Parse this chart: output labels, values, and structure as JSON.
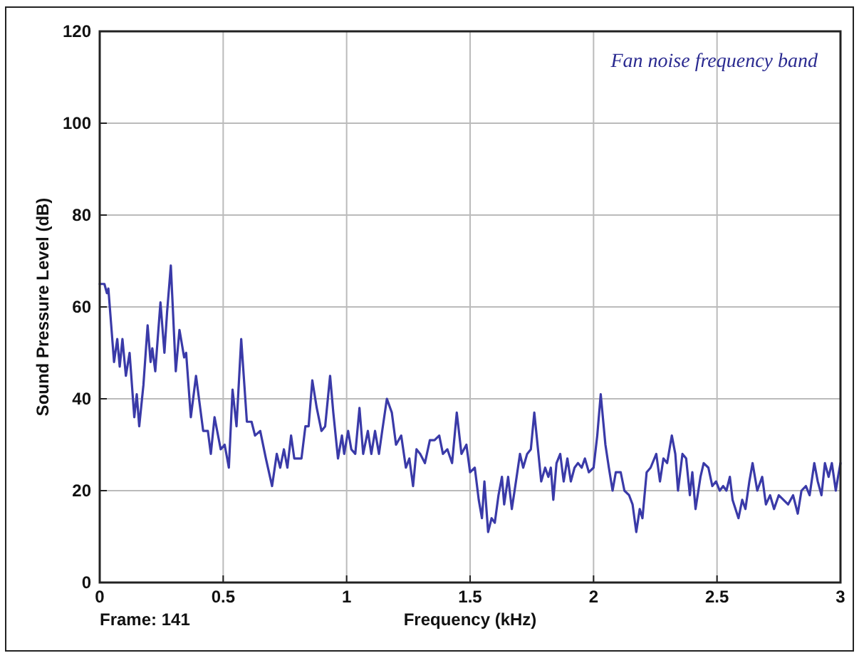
{
  "chart_data": {
    "type": "line",
    "xlabel": "Frequency (kHz)",
    "ylabel": "Sound Pressure Level (dB)",
    "annotations": [
      "Fan noise frequency band",
      "Frame: 141"
    ],
    "xlim": [
      0,
      3
    ],
    "ylim": [
      0,
      120
    ],
    "xticks": [
      0,
      0.5,
      1,
      1.5,
      2,
      2.5,
      3
    ],
    "yticks": [
      0,
      20,
      40,
      60,
      80,
      100,
      120
    ],
    "grid": true,
    "line_style": "solid",
    "marker": "none",
    "series": [
      {
        "color": "#3a3aa8",
        "x": [
          0,
          0.019,
          0.029,
          0.035,
          0.048,
          0.058,
          0.071,
          0.081,
          0.092,
          0.106,
          0.121,
          0.14,
          0.15,
          0.16,
          0.177,
          0.194,
          0.206,
          0.213,
          0.225,
          0.246,
          0.262,
          0.273,
          0.288,
          0.308,
          0.323,
          0.342,
          0.35,
          0.369,
          0.39,
          0.419,
          0.438,
          0.45,
          0.465,
          0.49,
          0.506,
          0.523,
          0.538,
          0.554,
          0.573,
          0.596,
          0.615,
          0.629,
          0.65,
          0.673,
          0.698,
          0.717,
          0.731,
          0.746,
          0.76,
          0.775,
          0.788,
          0.817,
          0.833,
          0.846,
          0.861,
          0.879,
          0.898,
          0.913,
          0.933,
          0.946,
          0.965,
          0.981,
          0.99,
          1.006,
          1.019,
          1.035,
          1.052,
          1.067,
          1.086,
          1.1,
          1.115,
          1.131,
          1.144,
          1.163,
          1.183,
          1.2,
          1.221,
          1.24,
          1.254,
          1.269,
          1.283,
          1.298,
          1.317,
          1.337,
          1.356,
          1.375,
          1.39,
          1.408,
          1.427,
          1.446,
          1.465,
          1.485,
          1.5,
          1.519,
          1.535,
          1.548,
          1.558,
          1.573,
          1.587,
          1.6,
          1.615,
          1.629,
          1.638,
          1.654,
          1.669,
          1.683,
          1.702,
          1.715,
          1.731,
          1.746,
          1.76,
          1.775,
          1.788,
          1.804,
          1.817,
          1.827,
          1.837,
          1.85,
          1.865,
          1.879,
          1.894,
          1.908,
          1.923,
          1.937,
          1.952,
          1.965,
          1.981,
          2.0,
          2.015,
          2.029,
          2.048,
          2.062,
          2.077,
          2.09,
          2.11,
          2.125,
          2.144,
          2.158,
          2.173,
          2.187,
          2.198,
          2.215,
          2.231,
          2.254,
          2.269,
          2.283,
          2.298,
          2.317,
          2.331,
          2.342,
          2.36,
          2.375,
          2.39,
          2.4,
          2.413,
          2.433,
          2.446,
          2.465,
          2.481,
          2.496,
          2.511,
          2.525,
          2.538,
          2.552,
          2.563,
          2.587,
          2.602,
          2.615,
          2.631,
          2.644,
          2.663,
          2.683,
          2.698,
          2.715,
          2.731,
          2.75,
          2.769,
          2.788,
          2.808,
          2.827,
          2.842,
          2.86,
          2.875,
          2.894,
          2.908,
          2.923,
          2.937,
          2.952,
          2.965,
          2.981,
          2.99,
          3.0
        ],
        "values": [
          65,
          65,
          63,
          64,
          55,
          48,
          53,
          47,
          53,
          45,
          50,
          36,
          41,
          34,
          43,
          56,
          48,
          51,
          46,
          61,
          50,
          59,
          69,
          46,
          55,
          49,
          50,
          36,
          45,
          33,
          33,
          28,
          36,
          29,
          30,
          25,
          42,
          34,
          53,
          35,
          35,
          32,
          33,
          27,
          21,
          28,
          25,
          29,
          25,
          32,
          27,
          27,
          34,
          34,
          44,
          38,
          33,
          34,
          45,
          37,
          27,
          32,
          28,
          33,
          29,
          28,
          38,
          28,
          33,
          28,
          33,
          28,
          33,
          40,
          37,
          30,
          32,
          25,
          27,
          21,
          29,
          28,
          26,
          31,
          31,
          32,
          28,
          29,
          26,
          37,
          28,
          30,
          24,
          25,
          18,
          14,
          22,
          11,
          14,
          13,
          19,
          23,
          17,
          23,
          16,
          21,
          28,
          25,
          28,
          29,
          37,
          29,
          22,
          25,
          23,
          25,
          18,
          26,
          28,
          22,
          27,
          22,
          25,
          26,
          25,
          27,
          24,
          25,
          32,
          41,
          30,
          25,
          20,
          24,
          24,
          20,
          19,
          17,
          11,
          16,
          14,
          24,
          25,
          28,
          22,
          27,
          26,
          32,
          28,
          20,
          28,
          27,
          19,
          24,
          16,
          23,
          26,
          25,
          21,
          22,
          20,
          21,
          20,
          23,
          18,
          14,
          18,
          16,
          22,
          26,
          20,
          23,
          17,
          19,
          16,
          19,
          18,
          17,
          19,
          15,
          20,
          21,
          19,
          26,
          22,
          19,
          26,
          23,
          26,
          20,
          23,
          26
        ]
      }
    ]
  }
}
